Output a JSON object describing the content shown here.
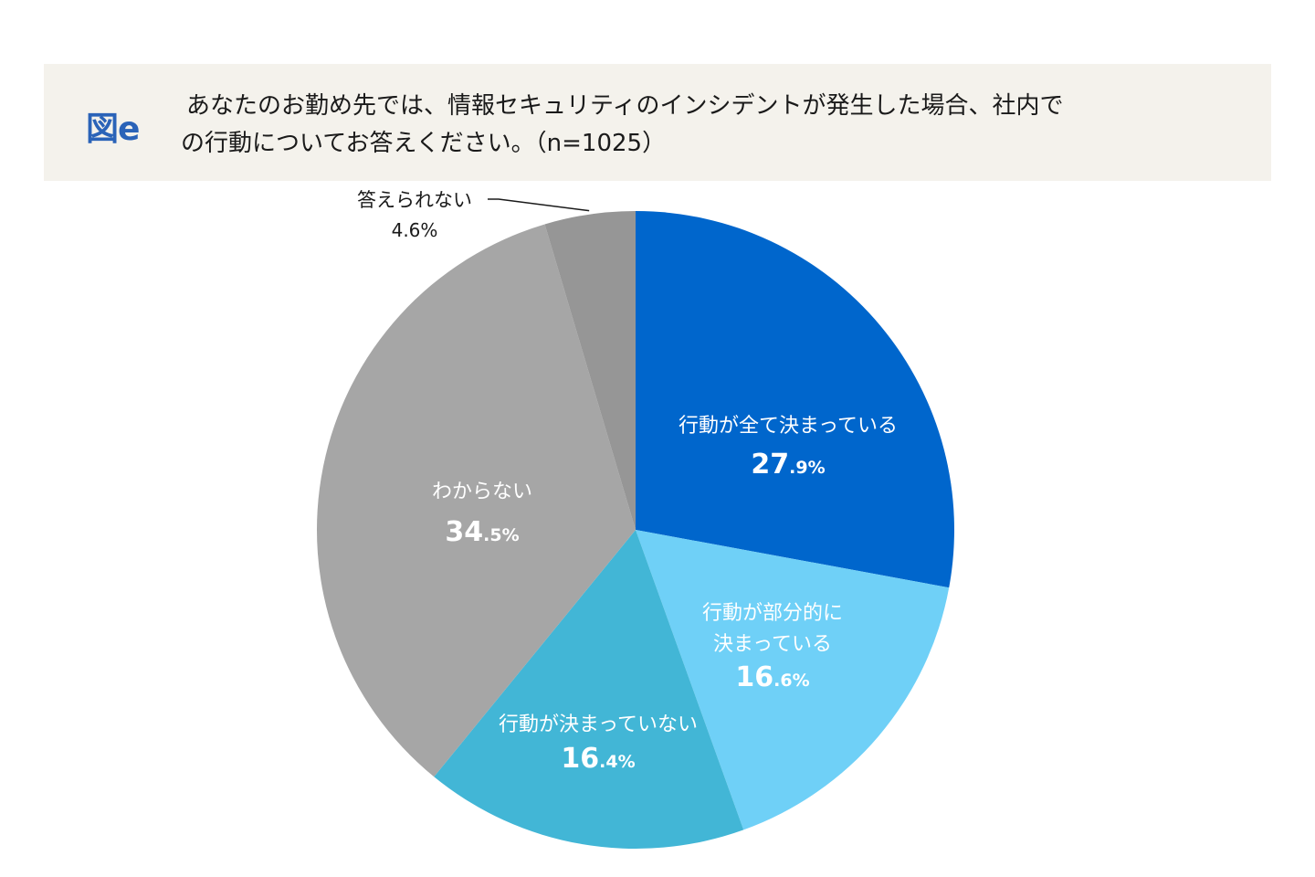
{
  "header": {
    "figure_label": "図e",
    "question_line1": "あなたのお勤め先では、情報セキュリティのインシデントが発生した場合、社内で",
    "question_line2": "の行動についてお答えください。（n=1025）"
  },
  "colors": {
    "decided_fully": "#0066cc",
    "decided_partially": "#6fd0f7",
    "not_decided": "#42b6d6",
    "dont_know": "#a6a6a6",
    "cannot_answer": "#969696",
    "header_bg": "#f4f2ec",
    "figure_label": "#2a63b8"
  },
  "chart_data": {
    "type": "pie",
    "title": "あなたのお勤め先では、情報セキュリティのインシデントが発生した場合、社内での行動についてお答えください。（n=1025）",
    "start_angle_deg": 0,
    "direction": "clockwise",
    "slices": [
      {
        "key": "decided_fully",
        "label_lines": [
          "行動が全て決まっている"
        ],
        "value": 27.9,
        "value_major": "27",
        "value_minor": ".9%",
        "text_color": "#ffffff"
      },
      {
        "key": "decided_partially",
        "label_lines": [
          "行動が部分的に",
          "決まっている"
        ],
        "value": 16.6,
        "value_major": "16",
        "value_minor": ".6%",
        "text_color": "#ffffff"
      },
      {
        "key": "not_decided",
        "label_lines": [
          "行動が決まっていない"
        ],
        "value": 16.4,
        "value_major": "16",
        "value_minor": ".4%",
        "text_color": "#ffffff"
      },
      {
        "key": "dont_know",
        "label_lines": [
          "わからない"
        ],
        "value": 34.5,
        "value_major": "34",
        "value_minor": ".5%",
        "text_color": "#ffffff"
      },
      {
        "key": "cannot_answer",
        "label_lines": [
          "答えられない"
        ],
        "value": 4.6,
        "value_major": "4.6%",
        "value_minor": "",
        "text_color": "#1a1a1a",
        "external_label": true
      }
    ]
  }
}
